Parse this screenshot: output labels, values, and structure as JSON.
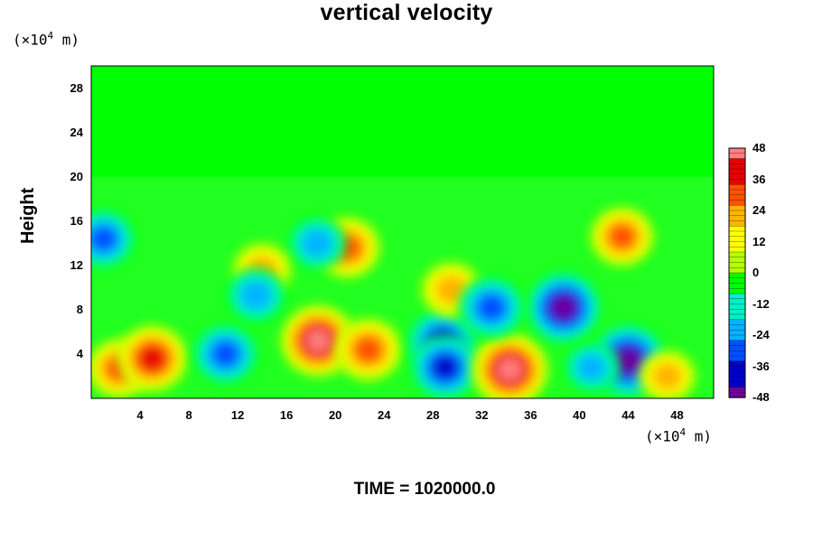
{
  "chart_data": {
    "type": "heatmap",
    "title": "vertical velocity",
    "ylabel": "Height",
    "xlabel": "",
    "x_unit": "(×10",
    "x_unit_exp": "4",
    "x_unit_tail": " m)",
    "y_unit": "(×10",
    "y_unit_exp": "4",
    "y_unit_tail": " m)",
    "xlim": [
      0,
      51
    ],
    "ylim": [
      0,
      30
    ],
    "xticks": [
      "4",
      "8",
      "12",
      "16",
      "20",
      "24",
      "28",
      "32",
      "36",
      "40",
      "44",
      "48"
    ],
    "xtick_values": [
      4,
      8,
      12,
      16,
      20,
      24,
      28,
      32,
      36,
      40,
      44,
      48
    ],
    "yticks": [
      "4",
      "8",
      "12",
      "16",
      "20",
      "24",
      "28"
    ],
    "ytick_values": [
      4,
      8,
      12,
      16,
      20,
      24,
      28
    ],
    "colorbar": {
      "min": -48,
      "max": 48,
      "labels": [
        "48",
        "36",
        "24",
        "12",
        "0",
        "-12",
        "-24",
        "-36",
        "-48"
      ],
      "label_values": [
        48,
        36,
        24,
        12,
        0,
        -12,
        -24,
        -36,
        -48
      ]
    },
    "features": [
      {
        "x": 2.3,
        "y": 2.7,
        "value": 30
      },
      {
        "x": 5.0,
        "y": 3.6,
        "value": 38
      },
      {
        "x": 11.0,
        "y": 4.0,
        "value": -32
      },
      {
        "x": 18.6,
        "y": 5.2,
        "value": 44
      },
      {
        "x": 22.7,
        "y": 4.4,
        "value": 34
      },
      {
        "x": 28.8,
        "y": 5.0,
        "value": -40
      },
      {
        "x": 29.0,
        "y": 2.8,
        "value": -36
      },
      {
        "x": 34.3,
        "y": 2.6,
        "value": 46
      },
      {
        "x": 38.7,
        "y": 8.2,
        "value": -44
      },
      {
        "x": 44.0,
        "y": 3.4,
        "value": -46
      },
      {
        "x": 47.2,
        "y": 2.0,
        "value": 22
      },
      {
        "x": 41.0,
        "y": 2.8,
        "value": -20
      },
      {
        "x": 1.0,
        "y": 14.4,
        "value": -30
      },
      {
        "x": 21.0,
        "y": 13.6,
        "value": 32
      },
      {
        "x": 18.5,
        "y": 14.0,
        "value": -24
      },
      {
        "x": 29.5,
        "y": 9.8,
        "value": 26
      },
      {
        "x": 32.8,
        "y": 8.2,
        "value": -34
      },
      {
        "x": 43.5,
        "y": 14.6,
        "value": 30
      },
      {
        "x": 14.0,
        "y": 11.6,
        "value": 24
      },
      {
        "x": 13.5,
        "y": 9.3,
        "value": -26
      }
    ]
  },
  "footer": {
    "time_label": "TIME = 1020000.0"
  },
  "colors": {
    "background": "#00ff00",
    "colormap": [
      "#7000a0",
      "#0000c8",
      "#0050ff",
      "#00b4ff",
      "#00f0c8",
      "#00ff00",
      "#b4ff00",
      "#ffff00",
      "#ffb400",
      "#ff5000",
      "#e60000",
      "#ff8080"
    ]
  }
}
